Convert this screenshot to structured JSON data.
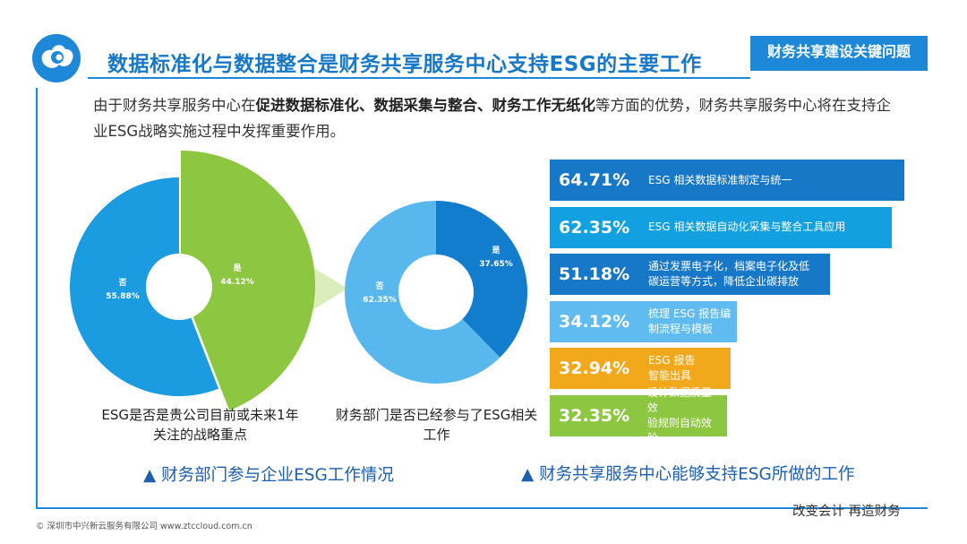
{
  "header": {
    "title": "数据标准化与数据整合是财务共享服务中心支持ESG的主要工作",
    "tag": "财务共享建设关键问题"
  },
  "intro": {
    "pre": "由于财务共享服务中心在",
    "bold": "促进数据标准化、数据采集与整合、财务工作无纸化",
    "post": "等方面的优势，财务共享服务中心将在支持企业ESG战略实施过程中发挥重要作用。"
  },
  "colors": {
    "brand_blue": "#1d88d8",
    "pie_blue": "#1b9ce0",
    "pie_green": "#8dc640",
    "pie_light_blue": "#58b8ee",
    "pie_dark_blue": "#127ccd",
    "bar_dark_blue": "#1878c8",
    "bar_blue": "#13a0e0",
    "bar_light_blue": "#5fbbf0",
    "bar_orange": "#f2a81b",
    "bar_green": "#8dc640"
  },
  "chart_data": [
    {
      "type": "pie",
      "title": "",
      "caption": "ESG是否是贵公司目前或未来1年关注的战略重点",
      "slices": [
        {
          "label": "否",
          "value": 55.88,
          "value_text": "55.88%"
        },
        {
          "label": "是",
          "value": 44.12,
          "value_text": "44.12%"
        }
      ]
    },
    {
      "type": "pie",
      "title": "",
      "caption": "财务部门是否已经参与了ESG相关工作",
      "slices": [
        {
          "label": "否",
          "value": 62.35,
          "value_text": "62.35%"
        },
        {
          "label": "是",
          "value": 37.65,
          "value_text": "37.65%"
        }
      ]
    },
    {
      "type": "bar",
      "orientation": "horizontal",
      "title": "",
      "categories": [
        "ESG 相关数据标准制定与统一",
        "ESG 相关数据自动化采集与整合工具应用",
        "通过发票电子化，档案电子化及低碳运营等方式，降低企业碳排放",
        "梳理 ESG 报告编制流程与模板",
        "ESG 报告智能出具",
        "设计数据质量效验规则自动效验"
      ],
      "values": [
        64.71,
        62.35,
        51.18,
        34.12,
        32.94,
        32.35
      ],
      "value_texts": [
        "64.71%",
        "62.35%",
        "51.18%",
        "34.12%",
        "32.94%",
        "32.35%"
      ],
      "label_lines": [
        [
          "ESG 相关数据标准制定与统一"
        ],
        [
          "ESG 相关数据自动化采集与整合工具应用"
        ],
        [
          "通过发票电子化，档案电子化及低",
          "碳运营等方式，降低企业碳排放"
        ],
        [
          "梳理 ESG 报告编",
          "制流程与模板"
        ],
        [
          "ESG 报告",
          "智能出具"
        ],
        [
          "设计数据质量效",
          "验规则自动效验"
        ]
      ],
      "colors": [
        "#1878c8",
        "#13a0e0",
        "#1878c8",
        "#5fbbf0",
        "#f2a81b",
        "#8dc640"
      ]
    }
  ],
  "captions": {
    "left_subtitle": "▲ 财务部门参与企业ESG工作情况",
    "right_subtitle": "▲ 财务共享服务中心能够支持ESG所做的工作"
  },
  "footer": {
    "slogan": "改变会计  再造财务",
    "copyright": "© 深圳市中兴新云服务有限公司  www.ztccloud.com.cn"
  }
}
